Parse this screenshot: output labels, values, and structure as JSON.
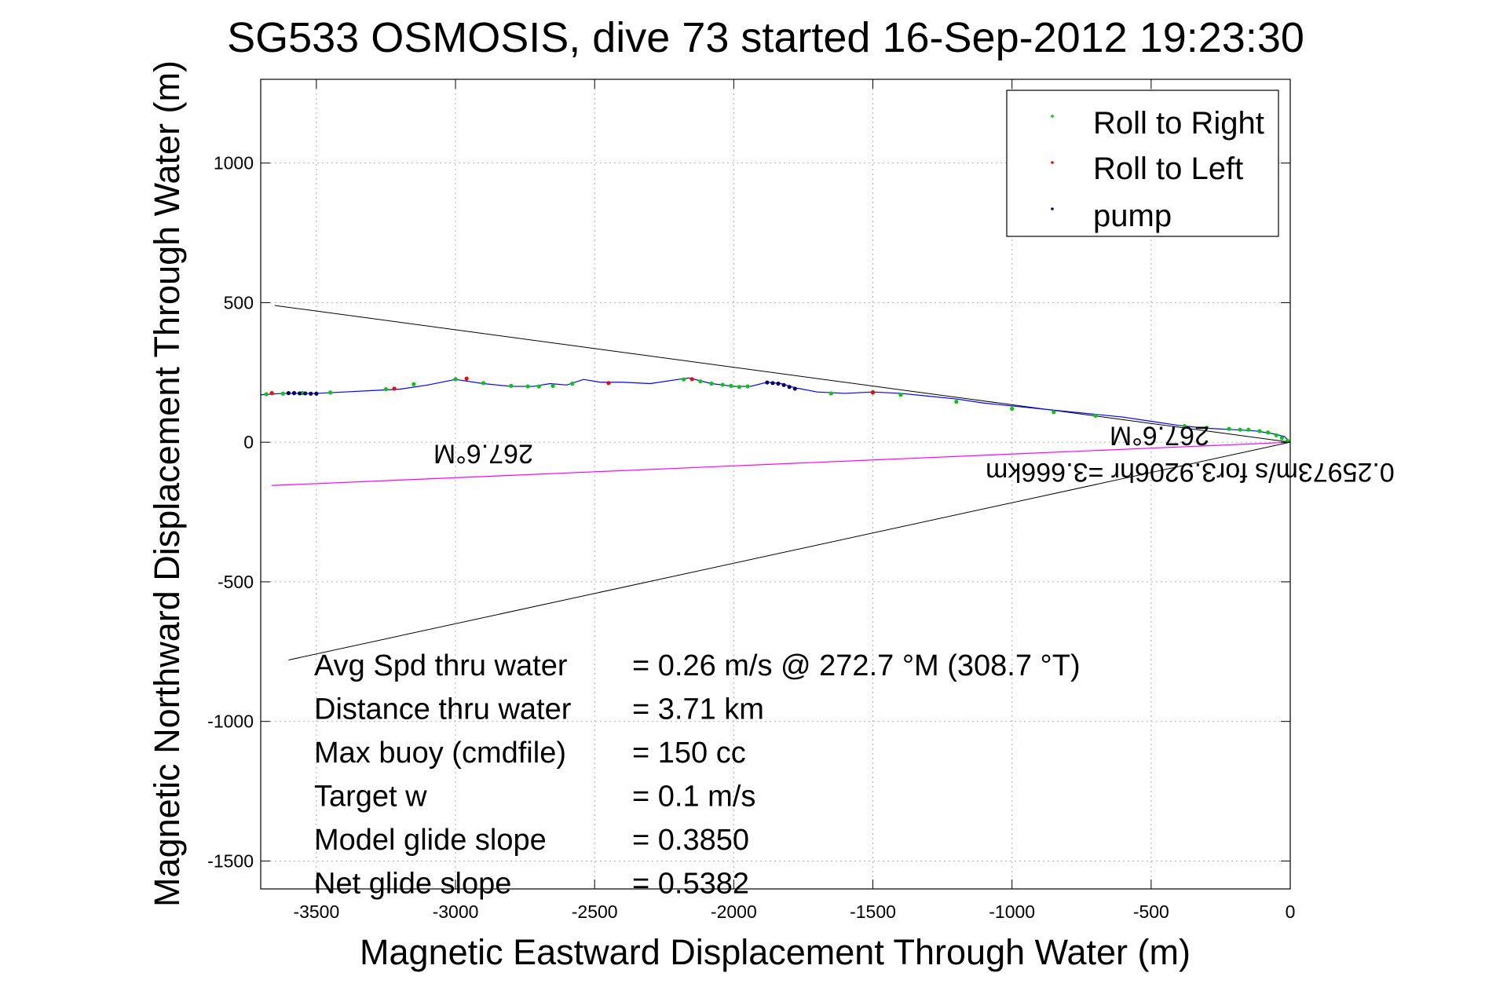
{
  "chart_data": {
    "type": "scatter",
    "title": "SG533 OSMOSIS, dive 73 started 16-Sep-2012 19:23:30",
    "xlabel": "Magnetic Eastward Displacement Through Water (m)",
    "ylabel": "Magnetic Northward Displacement Through Water (m)",
    "xlim": [
      -3700,
      0
    ],
    "ylim": [
      -1600,
      1300
    ],
    "xticks": [
      -3500,
      -3000,
      -2500,
      -2000,
      -1500,
      -1000,
      -500,
      0
    ],
    "yticks": [
      -1500,
      -1000,
      -500,
      0,
      500,
      1000
    ],
    "grid": true,
    "legend_position": "top-right",
    "legend": [
      "Roll to Right",
      "Roll to Left",
      "pump"
    ],
    "colors": {
      "track": "#0000ff",
      "roll_right": "#00cc00",
      "roll_left": "#ff0000",
      "pump": "#000066",
      "heading_lines": "#000000",
      "speed_line": "#ff00ff"
    },
    "track": {
      "x": [
        0,
        -20,
        -60,
        -120,
        -200,
        -300,
        -400,
        -500,
        -600,
        -700,
        -800,
        -900,
        -1000,
        -1100,
        -1200,
        -1300,
        -1400,
        -1500,
        -1600,
        -1700,
        -1780,
        -1830,
        -1880,
        -1940,
        -2000,
        -2080,
        -2160,
        -2200,
        -2300,
        -2400,
        -2480,
        -2540,
        -2600,
        -2660,
        -2720,
        -2800,
        -2900,
        -3000,
        -3100,
        -3200,
        -3300,
        -3400,
        -3500,
        -3560,
        -3620,
        -3700
      ],
      "y": [
        0,
        20,
        30,
        40,
        45,
        50,
        60,
        75,
        90,
        100,
        110,
        120,
        130,
        140,
        155,
        165,
        175,
        180,
        175,
        180,
        195,
        210,
        215,
        200,
        200,
        210,
        230,
        225,
        210,
        215,
        215,
        225,
        205,
        210,
        200,
        200,
        210,
        225,
        205,
        190,
        185,
        180,
        175,
        175,
        175,
        170
      ]
    },
    "roll_right": {
      "x": [
        -10,
        -30,
        -50,
        -80,
        -110,
        -150,
        -180,
        -220,
        -300,
        -380,
        -700,
        -850,
        -1000,
        -1200,
        -1400,
        -1500,
        -1650,
        -1950,
        -1980,
        -2010,
        -2040,
        -2080,
        -2120,
        -2180,
        -2580,
        -2650,
        -2700,
        -2740,
        -2800,
        -2900,
        -3000,
        -3150,
        -3250,
        -3450,
        -3550,
        -3580,
        -3620,
        -3680
      ],
      "y": [
        5,
        15,
        25,
        35,
        40,
        45,
        45,
        48,
        52,
        58,
        95,
        108,
        120,
        145,
        170,
        180,
        175,
        200,
        198,
        202,
        206,
        210,
        218,
        225,
        210,
        202,
        200,
        200,
        202,
        212,
        226,
        208,
        190,
        178,
        176,
        176,
        174,
        172
      ]
    },
    "roll_left": {
      "x": [
        -1500,
        -2150,
        -2450,
        -2960,
        -3220,
        -3660
      ],
      "y": [
        178,
        226,
        212,
        228,
        192,
        176
      ]
    },
    "pump": {
      "x": [
        -1780,
        -1800,
        -1820,
        -1840,
        -1860,
        -1880,
        -3500,
        -3520,
        -3540,
        -3560,
        -3580,
        -3600
      ],
      "y": [
        192,
        198,
        205,
        210,
        212,
        214,
        174,
        174,
        175,
        175,
        176,
        176
      ]
    },
    "heading_lines": [
      {
        "x": [
          0,
          -3650
        ],
        "y": [
          0,
          490
        ]
      },
      {
        "x": [
          0,
          -3600
        ],
        "y": [
          0,
          -780
        ]
      }
    ],
    "speed_line": {
      "x": [
        0,
        -3660
      ],
      "y": [
        0,
        -155
      ]
    },
    "line_annotations": [
      {
        "text": "267.6°M",
        "x": -2900,
        "y": -10,
        "rotate": 180
      },
      {
        "text": "267.6°M",
        "x": -470,
        "y": 55,
        "rotate": 180
      },
      {
        "text": "0.25973m/s for3.9206hr =3.666km",
        "x": -360,
        "y": -75,
        "rotate": 180
      }
    ],
    "summary": [
      {
        "label": "Avg Spd thru water",
        "value": "=  0.26 m/s @ 272.7 °M (308.7 °T)"
      },
      {
        "label": "Distance thru water",
        "value": "=  3.71 km"
      },
      {
        "label": "Max buoy (cmdfile)",
        "value": "= 150 cc"
      },
      {
        "label": "Target w",
        "value": "= 0.1 m/s"
      },
      {
        "label": "Model glide slope",
        "value": "= 0.3850"
      },
      {
        "label": "Net glide slope",
        "value": "= 0.5382"
      }
    ]
  }
}
